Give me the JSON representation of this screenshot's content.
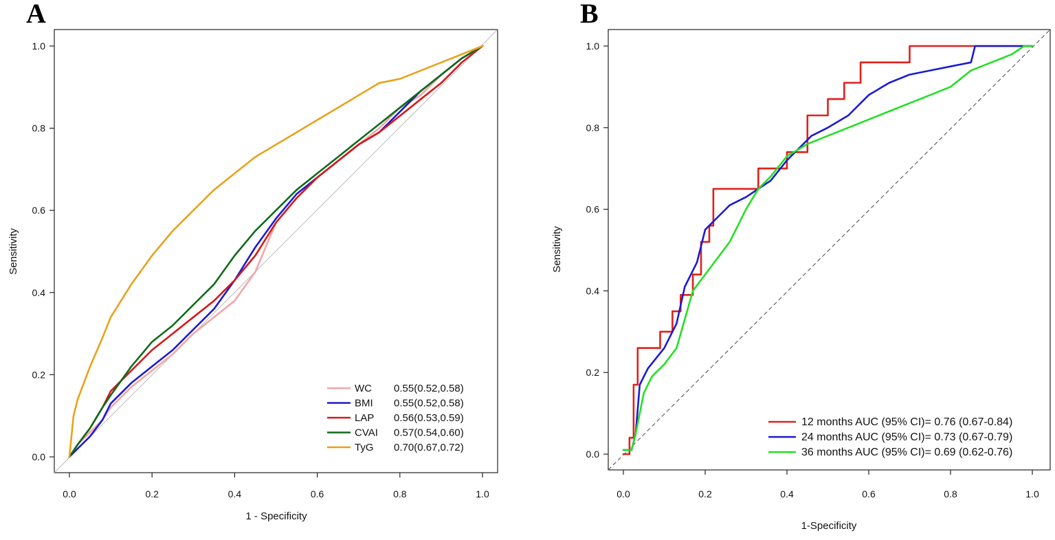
{
  "chart_data": [
    {
      "panel_label": "A",
      "type": "line",
      "xlabel": "1 - Specificity",
      "ylabel": "Sensitivity",
      "xlim": [
        0,
        1
      ],
      "ylim": [
        0,
        1
      ],
      "x_ticks": [
        "0.0",
        "0.2",
        "0.4",
        "0.6",
        "0.8",
        "1.0"
      ],
      "y_ticks": [
        "0.0",
        "0.2",
        "0.4",
        "0.6",
        "0.8",
        "1.0"
      ],
      "reference_line": "diagonal-solid",
      "legend_position": "bottom-right",
      "series": [
        {
          "name": "WC",
          "auc": "0.55(0.52,0.58)",
          "color": "#f4a6a6",
          "x": [
            0,
            0.02,
            0.05,
            0.08,
            0.1,
            0.15,
            0.2,
            0.25,
            0.3,
            0.35,
            0.4,
            0.45,
            0.5,
            0.55,
            0.6,
            0.65,
            0.7,
            0.75,
            0.8,
            0.85,
            0.9,
            0.95,
            1.0
          ],
          "y": [
            0,
            0.03,
            0.06,
            0.09,
            0.12,
            0.17,
            0.21,
            0.25,
            0.3,
            0.34,
            0.38,
            0.45,
            0.57,
            0.63,
            0.68,
            0.72,
            0.76,
            0.8,
            0.85,
            0.88,
            0.93,
            0.97,
            1.0
          ]
        },
        {
          "name": "BMI",
          "auc": "0.55(0.52,0.58)",
          "color": "#1a1ad4",
          "x": [
            0,
            0.02,
            0.05,
            0.08,
            0.1,
            0.15,
            0.2,
            0.25,
            0.3,
            0.35,
            0.4,
            0.45,
            0.5,
            0.55,
            0.6,
            0.65,
            0.7,
            0.75,
            0.8,
            0.85,
            0.9,
            0.95,
            1.0
          ],
          "y": [
            0,
            0.02,
            0.05,
            0.09,
            0.13,
            0.18,
            0.22,
            0.26,
            0.31,
            0.36,
            0.43,
            0.51,
            0.58,
            0.64,
            0.68,
            0.72,
            0.76,
            0.79,
            0.84,
            0.89,
            0.93,
            0.97,
            1.0
          ]
        },
        {
          "name": "LAP",
          "auc": "0.56(0.53,0.59)",
          "color": "#d41a1a",
          "x": [
            0,
            0.02,
            0.05,
            0.08,
            0.1,
            0.15,
            0.2,
            0.25,
            0.3,
            0.35,
            0.4,
            0.45,
            0.5,
            0.55,
            0.6,
            0.65,
            0.7,
            0.75,
            0.8,
            0.85,
            0.9,
            0.95,
            1.0
          ],
          "y": [
            0,
            0.03,
            0.07,
            0.12,
            0.16,
            0.21,
            0.26,
            0.3,
            0.34,
            0.38,
            0.43,
            0.49,
            0.57,
            0.63,
            0.68,
            0.72,
            0.76,
            0.79,
            0.83,
            0.87,
            0.91,
            0.96,
            1.0
          ]
        },
        {
          "name": "CVAI",
          "auc": "0.57(0.54,0.60)",
          "color": "#0f6b1a",
          "x": [
            0,
            0.02,
            0.05,
            0.08,
            0.1,
            0.15,
            0.2,
            0.25,
            0.3,
            0.35,
            0.4,
            0.45,
            0.5,
            0.55,
            0.6,
            0.65,
            0.7,
            0.75,
            0.8,
            0.85,
            0.9,
            0.95,
            1.0
          ],
          "y": [
            0,
            0.03,
            0.07,
            0.12,
            0.15,
            0.22,
            0.28,
            0.32,
            0.37,
            0.42,
            0.49,
            0.55,
            0.6,
            0.65,
            0.69,
            0.73,
            0.77,
            0.81,
            0.85,
            0.89,
            0.93,
            0.97,
            1.0
          ]
        },
        {
          "name": "TyG",
          "auc": "0.70(0.67,0.72)",
          "color": "#e8a21a",
          "x": [
            0,
            0.01,
            0.02,
            0.05,
            0.08,
            0.1,
            0.15,
            0.2,
            0.25,
            0.3,
            0.35,
            0.4,
            0.45,
            0.5,
            0.55,
            0.6,
            0.65,
            0.7,
            0.75,
            0.8,
            0.85,
            0.9,
            0.95,
            1.0
          ],
          "y": [
            0,
            0.1,
            0.14,
            0.22,
            0.29,
            0.34,
            0.42,
            0.49,
            0.55,
            0.6,
            0.65,
            0.69,
            0.73,
            0.76,
            0.79,
            0.82,
            0.85,
            0.88,
            0.91,
            0.92,
            0.94,
            0.96,
            0.98,
            1.0
          ]
        }
      ]
    },
    {
      "panel_label": "B",
      "type": "line",
      "xlabel": "1-Specificity",
      "ylabel": "Sensitivity",
      "xlim": [
        0,
        1
      ],
      "ylim": [
        0,
        1
      ],
      "x_ticks": [
        "0.0",
        "0.2",
        "0.4",
        "0.6",
        "0.8",
        "1.0"
      ],
      "y_ticks": [
        "0.0",
        "0.2",
        "0.4",
        "0.6",
        "0.8",
        "1.0"
      ],
      "reference_line": "diagonal-dashed",
      "legend_position": "bottom-right",
      "series": [
        {
          "name": "12 months AUC (95% CI)= 0.76 (0.67-0.84)",
          "color": "#e0201a",
          "x": [
            0,
            0.015,
            0.015,
            0.025,
            0.025,
            0.035,
            0.035,
            0.09,
            0.09,
            0.12,
            0.12,
            0.14,
            0.14,
            0.17,
            0.17,
            0.19,
            0.19,
            0.21,
            0.21,
            0.22,
            0.22,
            0.33,
            0.33,
            0.4,
            0.4,
            0.45,
            0.45,
            0.5,
            0.5,
            0.54,
            0.54,
            0.58,
            0.58,
            0.65,
            0.65,
            0.7,
            0.7,
            0.86,
            1.0
          ],
          "y": [
            0,
            0,
            0.04,
            0.04,
            0.17,
            0.17,
            0.26,
            0.26,
            0.3,
            0.3,
            0.35,
            0.35,
            0.39,
            0.39,
            0.44,
            0.44,
            0.52,
            0.52,
            0.56,
            0.56,
            0.65,
            0.65,
            0.7,
            0.7,
            0.74,
            0.74,
            0.83,
            0.83,
            0.87,
            0.87,
            0.91,
            0.91,
            0.96,
            0.96,
            0.96,
            0.96,
            1.0,
            1.0,
            1.0
          ]
        },
        {
          "name": "24 months AUC (95% CI)= 0.73 (0.67-0.79)",
          "color": "#1a1ad4",
          "x": [
            0,
            0.02,
            0.03,
            0.04,
            0.06,
            0.1,
            0.13,
            0.15,
            0.18,
            0.2,
            0.23,
            0.26,
            0.3,
            0.33,
            0.36,
            0.4,
            0.43,
            0.46,
            0.5,
            0.55,
            0.6,
            0.65,
            0.7,
            0.75,
            0.8,
            0.85,
            0.86,
            0.9,
            0.95,
            1.0
          ],
          "y": [
            0.01,
            0.01,
            0.05,
            0.17,
            0.21,
            0.26,
            0.32,
            0.41,
            0.47,
            0.55,
            0.58,
            0.61,
            0.63,
            0.65,
            0.67,
            0.72,
            0.75,
            0.78,
            0.8,
            0.83,
            0.88,
            0.91,
            0.93,
            0.94,
            0.95,
            0.96,
            1.0,
            1.0,
            1.0,
            1.0
          ]
        },
        {
          "name": "36 months AUC (95% CI)= 0.69 (0.62-0.76)",
          "color": "#22e022",
          "x": [
            0,
            0.02,
            0.03,
            0.05,
            0.07,
            0.1,
            0.13,
            0.15,
            0.17,
            0.2,
            0.23,
            0.26,
            0.28,
            0.3,
            0.33,
            0.36,
            0.4,
            0.45,
            0.5,
            0.55,
            0.6,
            0.65,
            0.7,
            0.75,
            0.8,
            0.85,
            0.9,
            0.95,
            0.98,
            1.0
          ],
          "y": [
            0.01,
            0.01,
            0.05,
            0.15,
            0.19,
            0.22,
            0.26,
            0.33,
            0.4,
            0.44,
            0.48,
            0.52,
            0.56,
            0.6,
            0.65,
            0.68,
            0.73,
            0.76,
            0.78,
            0.8,
            0.82,
            0.84,
            0.86,
            0.88,
            0.9,
            0.94,
            0.96,
            0.98,
            1.0,
            1.0
          ]
        }
      ]
    }
  ]
}
